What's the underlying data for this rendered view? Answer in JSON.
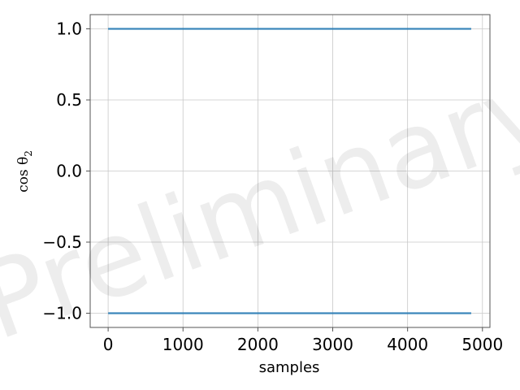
{
  "chart_data": {
    "type": "scatter",
    "title": "",
    "xlabel": "samples",
    "ylabel": "cos θ",
    "ylabel_subscript": "2",
    "watermark": "Preliminary",
    "xlim": [
      -240,
      5100
    ],
    "ylim": [
      -1.1,
      1.1
    ],
    "xticks": [
      0,
      1000,
      2000,
      3000,
      4000,
      5000
    ],
    "xtick_labels": [
      "0",
      "1000",
      "2000",
      "3000",
      "4000",
      "5000"
    ],
    "yticks": [
      -1.0,
      -0.5,
      0.0,
      0.5,
      1.0
    ],
    "ytick_labels": [
      "−1.0",
      "−0.5",
      "0.0",
      "0.5",
      "1.0"
    ],
    "grid": true,
    "series": [
      {
        "x_range": [
          0,
          4850
        ],
        "y": 1.0,
        "color": "#1f77b4"
      },
      {
        "x_range": [
          0,
          4850
        ],
        "y": -1.0,
        "color": "#1f77b4"
      }
    ]
  }
}
